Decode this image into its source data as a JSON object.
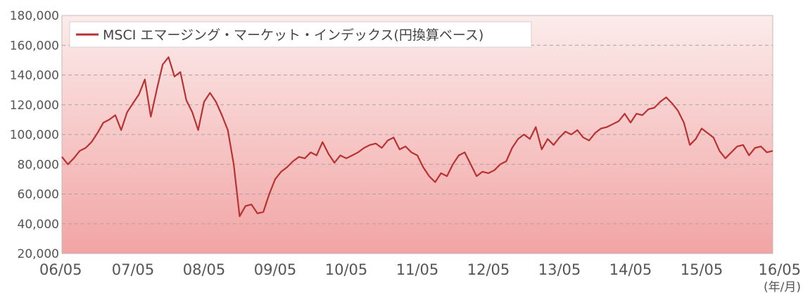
{
  "chart_data": {
    "type": "line",
    "title": "",
    "xlabel": "",
    "ylabel": "",
    "x_unit": "(年/月)",
    "ylim": [
      20000,
      180000
    ],
    "xlim": [
      "2006-05",
      "2016-05"
    ],
    "grid": true,
    "legend_position": "top-left",
    "colors": {
      "line": "#b83232",
      "gradient_top": "#fbeceb",
      "gradient_bottom": "#f2a4a4",
      "grid": "#b0a0a0"
    },
    "y_ticks": [
      "20,000",
      "40,000",
      "60,000",
      "80,000",
      "100,000",
      "120,000",
      "140,000",
      "160,000",
      "180,000"
    ],
    "y_tick_values": [
      20000,
      40000,
      60000,
      80000,
      100000,
      120000,
      140000,
      160000,
      180000
    ],
    "x_ticks": [
      "06/05",
      "07/05",
      "08/05",
      "09/05",
      "10/05",
      "11/05",
      "12/05",
      "13/05",
      "14/05",
      "15/05",
      "16/05"
    ],
    "series": [
      {
        "name": "MSCI エマージング・マーケット・インデックス(円換算ベース)",
        "points": [
          [
            "2006-05",
            85000
          ],
          [
            "2006-06",
            80000
          ],
          [
            "2006-07",
            84000
          ],
          [
            "2006-08",
            89000
          ],
          [
            "2006-09",
            91000
          ],
          [
            "2006-10",
            95000
          ],
          [
            "2006-11",
            101000
          ],
          [
            "2006-12",
            108000
          ],
          [
            "2007-01",
            110000
          ],
          [
            "2007-02",
            113000
          ],
          [
            "2007-03",
            103000
          ],
          [
            "2007-04",
            115000
          ],
          [
            "2007-05",
            121000
          ],
          [
            "2007-06",
            127000
          ],
          [
            "2007-07",
            137000
          ],
          [
            "2007-08",
            112000
          ],
          [
            "2007-09",
            130000
          ],
          [
            "2007-10",
            147000
          ],
          [
            "2007-11",
            152000
          ],
          [
            "2007-12",
            139000
          ],
          [
            "2008-01",
            142000
          ],
          [
            "2008-02",
            123000
          ],
          [
            "2008-03",
            115000
          ],
          [
            "2008-04",
            103000
          ],
          [
            "2008-05",
            122000
          ],
          [
            "2008-06",
            128000
          ],
          [
            "2008-07",
            122000
          ],
          [
            "2008-08",
            113000
          ],
          [
            "2008-09",
            103000
          ],
          [
            "2008-10",
            80000
          ],
          [
            "2008-11",
            45000
          ],
          [
            "2008-12",
            52000
          ],
          [
            "2009-01",
            53000
          ],
          [
            "2009-02",
            47000
          ],
          [
            "2009-03",
            48000
          ],
          [
            "2009-04",
            60000
          ],
          [
            "2009-05",
            70000
          ],
          [
            "2009-06",
            75000
          ],
          [
            "2009-07",
            78000
          ],
          [
            "2009-08",
            82000
          ],
          [
            "2009-09",
            85000
          ],
          [
            "2009-10",
            84000
          ],
          [
            "2009-11",
            88000
          ],
          [
            "2009-12",
            86000
          ],
          [
            "2010-01",
            95000
          ],
          [
            "2010-02",
            87000
          ],
          [
            "2010-03",
            81000
          ],
          [
            "2010-04",
            86000
          ],
          [
            "2010-05",
            84000
          ],
          [
            "2010-06",
            86000
          ],
          [
            "2010-07",
            88000
          ],
          [
            "2010-08",
            91000
          ],
          [
            "2010-09",
            93000
          ],
          [
            "2010-10",
            94000
          ],
          [
            "2010-11",
            91000
          ],
          [
            "2010-12",
            96000
          ],
          [
            "2011-01",
            98000
          ],
          [
            "2011-02",
            90000
          ],
          [
            "2011-03",
            92000
          ],
          [
            "2011-04",
            88000
          ],
          [
            "2011-05",
            86000
          ],
          [
            "2011-06",
            78000
          ],
          [
            "2011-07",
            72000
          ],
          [
            "2011-08",
            68000
          ],
          [
            "2011-09",
            74000
          ],
          [
            "2011-10",
            72000
          ],
          [
            "2011-11",
            80000
          ],
          [
            "2011-12",
            86000
          ],
          [
            "2012-01",
            88000
          ],
          [
            "2012-02",
            80000
          ],
          [
            "2012-03",
            72000
          ],
          [
            "2012-04",
            75000
          ],
          [
            "2012-05",
            74000
          ],
          [
            "2012-06",
            76000
          ],
          [
            "2012-07",
            80000
          ],
          [
            "2012-08",
            82000
          ],
          [
            "2012-09",
            91000
          ],
          [
            "2012-10",
            97000
          ],
          [
            "2012-11",
            100000
          ],
          [
            "2012-12",
            97000
          ],
          [
            "2013-01",
            105000
          ],
          [
            "2013-02",
            90000
          ],
          [
            "2013-03",
            97000
          ],
          [
            "2013-04",
            93000
          ],
          [
            "2013-05",
            98000
          ],
          [
            "2013-06",
            102000
          ],
          [
            "2013-07",
            100000
          ],
          [
            "2013-08",
            103000
          ],
          [
            "2013-09",
            98000
          ],
          [
            "2013-10",
            96000
          ],
          [
            "2013-11",
            101000
          ],
          [
            "2013-12",
            104000
          ],
          [
            "2014-01",
            105000
          ],
          [
            "2014-02",
            107000
          ],
          [
            "2014-03",
            109000
          ],
          [
            "2014-04",
            114000
          ],
          [
            "2014-05",
            108000
          ],
          [
            "2014-06",
            114000
          ],
          [
            "2014-07",
            113000
          ],
          [
            "2014-08",
            117000
          ],
          [
            "2014-09",
            118000
          ],
          [
            "2014-10",
            122000
          ],
          [
            "2014-11",
            125000
          ],
          [
            "2014-12",
            121000
          ],
          [
            "2015-01",
            116000
          ],
          [
            "2015-02",
            108000
          ],
          [
            "2015-03",
            93000
          ],
          [
            "2015-04",
            97000
          ],
          [
            "2015-05",
            104000
          ],
          [
            "2015-06",
            101000
          ],
          [
            "2015-07",
            98000
          ],
          [
            "2015-08",
            89000
          ],
          [
            "2015-09",
            84000
          ],
          [
            "2015-10",
            88000
          ],
          [
            "2015-11",
            92000
          ],
          [
            "2015-12",
            93000
          ],
          [
            "2016-01",
            86000
          ],
          [
            "2016-02",
            91000
          ],
          [
            "2016-03",
            92000
          ],
          [
            "2016-04",
            88000
          ],
          [
            "2016-05",
            89000
          ]
        ]
      }
    ]
  }
}
